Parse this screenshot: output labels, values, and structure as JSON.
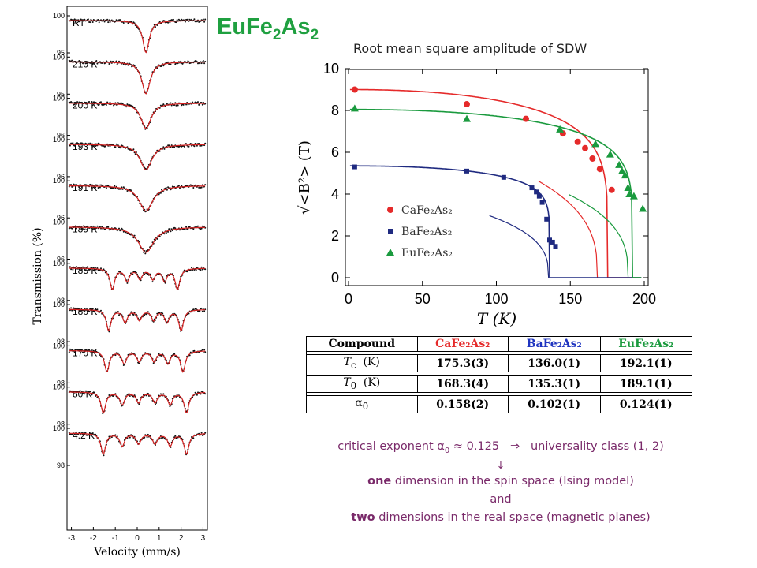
{
  "heading": {
    "formula_main": "EuFe",
    "formula_sub1": "2",
    "formula_mid": "As",
    "formula_sub2": "2"
  },
  "left_panel": {
    "ylabel": "Transmission (%)",
    "xlabel": "Velocity (mm/s)",
    "x_ticks": [
      "-3",
      "-2",
      "-1",
      "0",
      "1",
      "2",
      "3"
    ],
    "spectra": [
      {
        "label": "RT",
        "top_tick": "100",
        "low_tick": "95"
      },
      {
        "label": "210 K",
        "top_tick": "100",
        "low_tick": "95"
      },
      {
        "label": "200 K",
        "top_tick": "100",
        "low_tick": "96"
      },
      {
        "label": "193 K",
        "top_tick": "100",
        "low_tick": "96"
      },
      {
        "label": "191 K",
        "top_tick": "100",
        "low_tick": "96"
      },
      {
        "label": "189 K",
        "top_tick": "100",
        "low_tick": "96"
      },
      {
        "label": "185 K",
        "top_tick": "100",
        "low_tick": "98"
      },
      {
        "label": "180 K",
        "top_tick": "100",
        "low_tick": "98"
      },
      {
        "label": "170 K",
        "top_tick": "100",
        "low_tick": "98"
      },
      {
        "label": "80 K",
        "top_tick": "100",
        "low_tick": "98"
      },
      {
        "label": "4.2 K",
        "top_tick": "100",
        "low_tick": "98"
      }
    ]
  },
  "chart_data": {
    "type": "scatter",
    "title": "Root mean square amplitude of SDW",
    "xlabel": "T (K)",
    "ylabel": "√<B²> (T)",
    "xlim": [
      0,
      200
    ],
    "ylim": [
      0,
      10
    ],
    "x_ticks": [
      0,
      50,
      100,
      150,
      200
    ],
    "y_ticks": [
      0,
      2,
      4,
      6,
      8,
      10
    ],
    "legend_position": "bottom-left",
    "series": [
      {
        "name": "CaFe₂As₂",
        "color": "#e52a2a",
        "marker": "circle",
        "Tc": 175.3,
        "T0": 168.3,
        "x": [
          4.2,
          80,
          120,
          145,
          155,
          160,
          165,
          170,
          178
        ],
        "y": [
          9.0,
          8.3,
          7.6,
          6.9,
          6.5,
          6.2,
          5.7,
          5.2,
          4.2
        ]
      },
      {
        "name": "BaFe₂As₂",
        "color": "#1f2a80",
        "marker": "square",
        "Tc": 136.0,
        "T0": 135.3,
        "x": [
          4.2,
          80,
          105,
          124,
          127,
          129,
          131,
          134,
          136,
          138,
          140
        ],
        "y": [
          5.3,
          5.1,
          4.8,
          4.3,
          4.1,
          3.9,
          3.6,
          2.8,
          1.8,
          1.7,
          1.5
        ]
      },
      {
        "name": "EuFe₂As₂",
        "color": "#1a9a3e",
        "marker": "triangle",
        "Tc": 192.1,
        "T0": 189.1,
        "x": [
          4.2,
          80,
          143,
          167,
          177,
          183,
          185,
          187,
          189,
          190,
          193,
          199
        ],
        "y": [
          8.1,
          7.6,
          7.1,
          6.4,
          5.9,
          5.4,
          5.1,
          4.9,
          4.3,
          4.0,
          3.9,
          3.3
        ]
      }
    ]
  },
  "table": {
    "headers": [
      "Compound",
      "CaFe₂As₂",
      "BaFe₂As₂",
      "EuFe₂As₂"
    ],
    "rows": [
      {
        "label": "T_c  (K)",
        "label_main": "T",
        "label_sub": "c",
        "label_unit": "(K)",
        "values": [
          "175.3(3)",
          "136.0(1)",
          "192.1(1)"
        ]
      },
      {
        "label": "T_0  (K)",
        "label_main": "T",
        "label_sub": "0",
        "label_unit": "(K)",
        "values": [
          "168.3(4)",
          "135.3(1)",
          "189.1(1)"
        ]
      },
      {
        "label": "α_0",
        "label_main": "α",
        "label_sub": "0",
        "label_unit": "",
        "values": [
          "0.158(2)",
          "0.102(1)",
          "0.124(1)"
        ]
      }
    ]
  },
  "notes": {
    "line1_a": "critical exponent",
    "alpha": "α",
    "alpha_sub": "0",
    "line1_b": "≈ 0.125",
    "implies": "⇒",
    "line1_c": "universality class (1, 2)",
    "arrow": "↓",
    "line2_bold": "one",
    "line2_rest": " dimension in the spin space (Ising model)",
    "line3": "and",
    "line4_bold": "two",
    "line4_rest": " dimensions in the real space (magnetic planes)"
  },
  "colors": {
    "fit": "#d42020",
    "data": "#111111",
    "ca": "#e52a2a",
    "ba": "#1f2a80",
    "eu": "#1a9a3e",
    "title": "#1fa040",
    "notes": "#7a2a6a"
  }
}
